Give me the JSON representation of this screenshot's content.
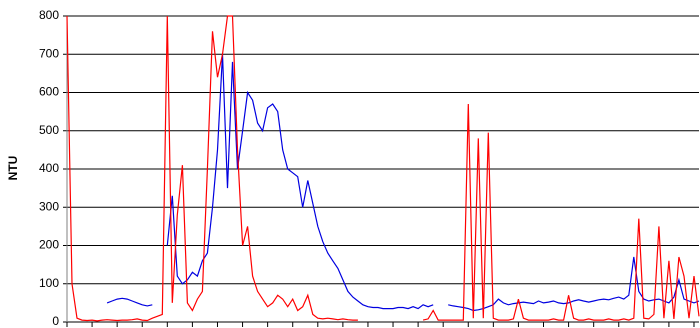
{
  "chart_data": {
    "type": "line",
    "y_label": "NTU",
    "categories": [
      null,
      null,
      null,
      null,
      null,
      null,
      null,
      null,
      null,
      null,
      null,
      null,
      null,
      null,
      null,
      null,
      null,
      null,
      null,
      null,
      null,
      null,
      null,
      null,
      null,
      null,
      null,
      null,
      null,
      null,
      null,
      null,
      null,
      null,
      null,
      null,
      null,
      null,
      null,
      null,
      null,
      null,
      null,
      null,
      null,
      null,
      null,
      null,
      null,
      null,
      null,
      null,
      null,
      null,
      null,
      null,
      null,
      null,
      null,
      null,
      null,
      null,
      null,
      null,
      null,
      null,
      null,
      null,
      null,
      null,
      null,
      null,
      null,
      null,
      null,
      null,
      null,
      null,
      null,
      null,
      null,
      null,
      null,
      null,
      null,
      null,
      null,
      null,
      null,
      null,
      null,
      null,
      null,
      null,
      null,
      null,
      null,
      null,
      null,
      null,
      null,
      null,
      null,
      null,
      null,
      null,
      null,
      null,
      null,
      null,
      null,
      null,
      null,
      null,
      null,
      null,
      null,
      null,
      null,
      null,
      null,
      null,
      null,
      null,
      null,
      null,
      null
    ],
    "series": [
      {
        "color": "#0000e0",
        "values": [
          null,
          null,
          null,
          null,
          null,
          null,
          null,
          null,
          50,
          55,
          60,
          62,
          60,
          55,
          50,
          45,
          42,
          45,
          null,
          null,
          200,
          330,
          120,
          100,
          110,
          130,
          120,
          160,
          180,
          300,
          450,
          700,
          350,
          680,
          400,
          500,
          600,
          580,
          520,
          500,
          560,
          570,
          550,
          450,
          400,
          390,
          380,
          300,
          370,
          310,
          250,
          210,
          180,
          160,
          140,
          110,
          80,
          65,
          55,
          45,
          40,
          38,
          38,
          35,
          35,
          35,
          38,
          38,
          35,
          40,
          35,
          45,
          40,
          45,
          null,
          null,
          45,
          42,
          40,
          38,
          35,
          30,
          32,
          35,
          40,
          45,
          60,
          50,
          45,
          48,
          50,
          52,
          50,
          48,
          55,
          50,
          52,
          55,
          50,
          48,
          50,
          55,
          58,
          55,
          52,
          55,
          58,
          60,
          58,
          62,
          65,
          60,
          70,
          170,
          80,
          60,
          55,
          58,
          60,
          55,
          50,
          65,
          110,
          60,
          55,
          50,
          55
        ]
      },
      {
        "color": "#ff0000",
        "values": [
          800,
          100,
          10,
          5,
          4,
          5,
          3,
          5,
          6,
          5,
          4,
          5,
          5,
          6,
          8,
          5,
          4,
          10,
          15,
          20,
          800,
          50,
          280,
          410,
          50,
          30,
          60,
          80,
          400,
          760,
          640,
          700,
          800,
          800,
          450,
          200,
          250,
          120,
          80,
          60,
          40,
          50,
          70,
          60,
          40,
          60,
          30,
          40,
          70,
          20,
          10,
          8,
          10,
          8,
          6,
          8,
          6,
          5,
          5,
          null,
          null,
          null,
          null,
          null,
          null,
          null,
          null,
          null,
          null,
          null,
          null,
          5,
          8,
          30,
          5,
          5,
          5,
          5,
          5,
          5,
          570,
          10,
          480,
          10,
          495,
          10,
          5,
          5,
          5,
          8,
          60,
          10,
          5,
          5,
          5,
          5,
          5,
          8,
          5,
          5,
          70,
          10,
          5,
          5,
          8,
          5,
          5,
          5,
          8,
          5,
          5,
          8,
          5,
          10,
          270,
          10,
          8,
          20,
          250,
          10,
          160,
          8,
          170,
          120,
          10,
          120,
          15
        ]
      }
    ],
    "ylim": [
      0,
      800
    ],
    "yticks": [
      0,
      100,
      200,
      300,
      400,
      500,
      600,
      700,
      800
    ],
    "grid": true
  }
}
